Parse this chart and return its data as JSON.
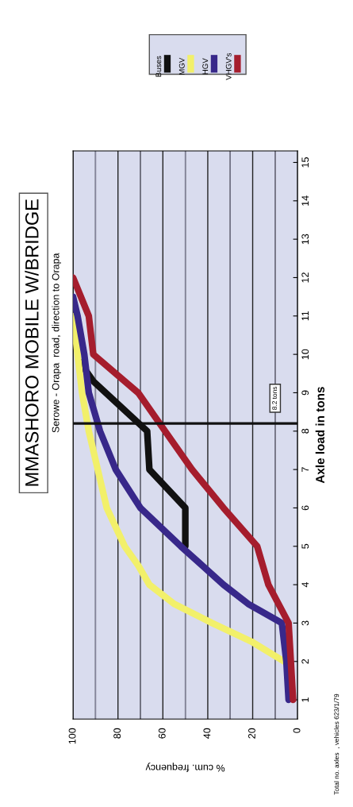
{
  "chart_data": {
    "type": "line",
    "title": "MMASHORO MOBILE W/BRIDGE",
    "subtitle": "Serowe - Orapa  road, direction to Orapa",
    "xlabel": "% cum. frequency",
    "ylabel": "Axle load in tons",
    "annotations": [
      "Total no. axles  , vehicles 623/1/79"
    ],
    "xlim": [
      100,
      0
    ],
    "xticks": [
      0,
      {
        "value": 10,
        "label": null
      },
      20,
      {
        "value": 30,
        "label": null
      },
      40,
      {
        "value": 50,
        "label": null
      },
      60,
      {
        "value": 70,
        "label": null
      },
      80,
      {
        "value": 90,
        "label": null
      },
      100
    ],
    "ylim": [
      0.5,
      15.3
    ],
    "yticks": [
      1,
      2,
      3,
      4,
      5,
      6,
      7,
      8,
      9,
      10,
      11,
      12,
      13,
      14,
      15
    ],
    "grid": "x",
    "legend": "top",
    "line_style": "solid",
    "ref_lines": [
      {
        "axis": "y",
        "value": 8.2,
        "label": "8.2 tons",
        "color": "#111111"
      }
    ],
    "series": [
      {
        "name": "Buses",
        "color": "#111111",
        "x": [
          50,
          50,
          66,
          67,
          91,
          97
        ],
        "values": [
          5,
          6,
          7,
          8,
          9.3,
          9.8
        ]
      },
      {
        "name": "MGV",
        "color": "#f2f06a",
        "x": [
          6,
          20,
          38,
          55,
          66,
          71,
          77,
          81,
          85,
          89,
          93,
          96,
          98,
          100
        ],
        "values": [
          2,
          2.5,
          3,
          3.5,
          4,
          4.5,
          5,
          5.5,
          6,
          7,
          8,
          9,
          10,
          11
        ]
      },
      {
        "name": "HGV",
        "color": "#38288a",
        "x": [
          4,
          5,
          7,
          22,
          33,
          52,
          70,
          81,
          88,
          93,
          95,
          98,
          100
        ],
        "values": [
          1,
          2,
          3,
          3.5,
          4,
          5,
          6,
          7,
          8,
          9,
          10,
          11,
          11.5
        ]
      },
      {
        "name": "VHGV's",
        "color": "#a51d2d",
        "x": [
          2,
          3,
          4,
          13,
          18,
          33,
          47,
          59,
          71,
          91,
          93,
          100
        ],
        "values": [
          1,
          2,
          3,
          4,
          5,
          6,
          7,
          8,
          9,
          10,
          11,
          12
        ]
      }
    ]
  }
}
